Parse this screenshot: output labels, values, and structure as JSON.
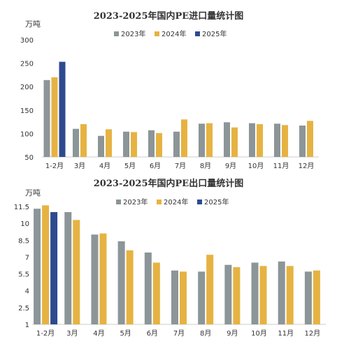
{
  "chart_data": [
    {
      "type": "bar",
      "title": "2023-2025年国内PE进口量统计图",
      "unit": "万吨",
      "categories": [
        "1-2月",
        "3月",
        "4月",
        "5月",
        "6月",
        "7月",
        "8月",
        "9月",
        "10月",
        "11月",
        "12月"
      ],
      "series": [
        {
          "name": "2023年",
          "color": "#8c9597",
          "values": [
            214,
            110,
            95,
            104,
            107,
            104,
            121,
            124,
            122,
            121,
            117
          ]
        },
        {
          "name": "2024年",
          "color": "#e6b342",
          "values": [
            220,
            120,
            109,
            103,
            101,
            130,
            122,
            113,
            120,
            118,
            127
          ]
        },
        {
          "name": "2025年",
          "color": "#2e4a8f",
          "values": [
            253,
            null,
            null,
            null,
            null,
            null,
            null,
            null,
            null,
            null,
            null
          ]
        }
      ],
      "ylim": [
        50,
        300
      ],
      "yticks": [
        "50",
        "100",
        "150",
        "200",
        "250",
        "300"
      ],
      "yticks_values": [
        50,
        100,
        150,
        200,
        250,
        300
      ],
      "legend": "top",
      "grid": false
    },
    {
      "type": "bar",
      "title": "2023-2025年国内PE出口量统计图",
      "unit": "万吨",
      "categories": [
        "1-2月",
        "3月",
        "4月",
        "5月",
        "6月",
        "7月",
        "8月",
        "9月",
        "10月",
        "11月",
        "12月"
      ],
      "series": [
        {
          "name": "2023年",
          "color": "#8c9597",
          "values": [
            11.3,
            11.0,
            9.0,
            8.4,
            7.4,
            5.8,
            5.7,
            6.3,
            6.5,
            6.6,
            5.7
          ]
        },
        {
          "name": "2024年",
          "color": "#e6b342",
          "values": [
            11.6,
            10.3,
            9.1,
            7.6,
            6.5,
            5.7,
            7.2,
            6.1,
            6.2,
            6.2,
            5.8
          ]
        },
        {
          "name": "2025年",
          "color": "#2e4a8f",
          "values": [
            11.0,
            null,
            null,
            null,
            null,
            null,
            null,
            null,
            null,
            null,
            null
          ]
        }
      ],
      "ylim": [
        1,
        11.5
      ],
      "yticks": [
        "1",
        "2.5",
        "4",
        "5.5",
        "7",
        "8.5",
        "10",
        "11.5"
      ],
      "yticks_values": [
        1,
        2.5,
        4,
        5.5,
        7,
        8.5,
        10,
        11.5
      ],
      "legend": "top",
      "grid": false
    }
  ]
}
